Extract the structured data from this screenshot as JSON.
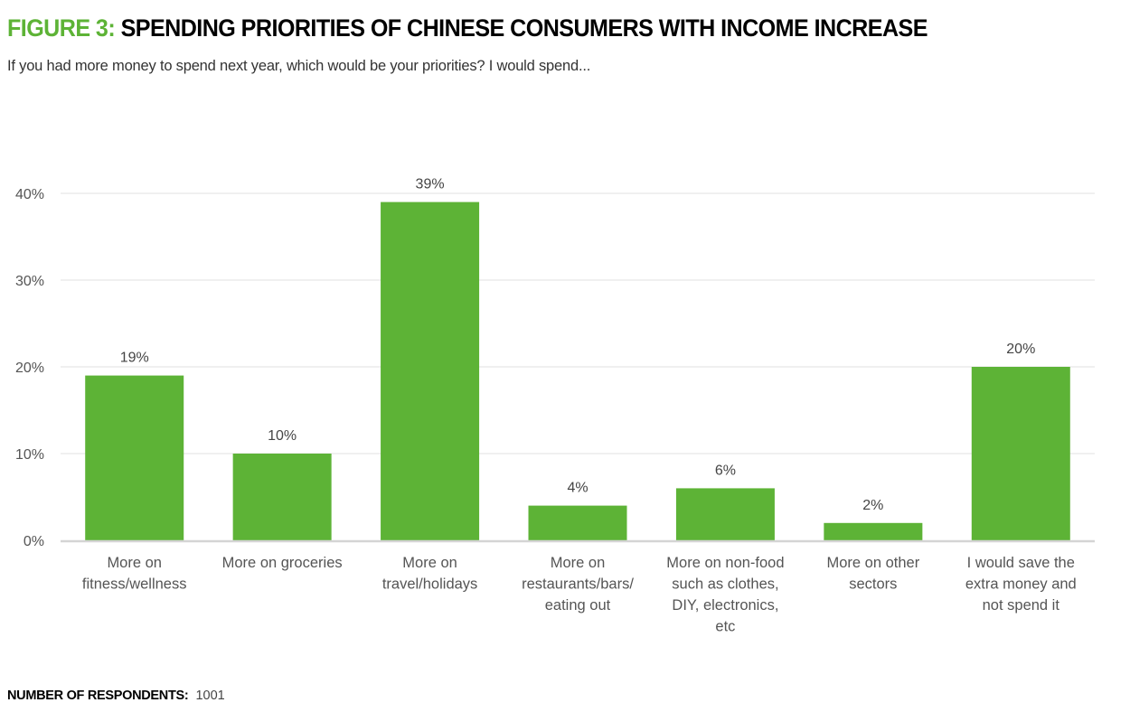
{
  "header": {
    "figure_label": "FIGURE 3:",
    "title": "SPENDING PRIORITIES OF CHINESE CONSUMERS WITH INCOME INCREASE",
    "subtitle": "If you had more money to spend next year, which would be your priorities? I would spend..."
  },
  "footer": {
    "label": "NUMBER OF RESPONDENTS:",
    "value": "1001"
  },
  "colors": {
    "accent": "#5db336",
    "bar": "#5db336",
    "gridline": "#e8e8e8",
    "axis": "#d4d4d4"
  },
  "chart_data": {
    "type": "bar",
    "title": "SPENDING PRIORITIES OF CHINESE CONSUMERS WITH INCOME INCREASE",
    "subtitle": "If you had more money to spend next year, which would be your priorities? I would spend...",
    "xlabel": "",
    "ylabel": "",
    "ylim": [
      0,
      40
    ],
    "yticks": [
      0,
      10,
      20,
      30,
      40
    ],
    "ytick_labels": [
      "0%",
      "10%",
      "20%",
      "30%",
      "40%"
    ],
    "grid": true,
    "legend": "none",
    "categories": [
      [
        "More on",
        "fitness/wellness"
      ],
      [
        "More on groceries"
      ],
      [
        "More on",
        "travel/holidays"
      ],
      [
        "More on",
        "restaurants/bars/",
        "eating out"
      ],
      [
        "More on non-food",
        "such as clothes,",
        "DIY, electronics,",
        "etc"
      ],
      [
        "More on other",
        "sectors"
      ],
      [
        "I would save the",
        "extra money and",
        "not spend it"
      ]
    ],
    "values": [
      19,
      10,
      39,
      4,
      6,
      2,
      20
    ],
    "data_labels": [
      "19%",
      "10%",
      "39%",
      "4%",
      "6%",
      "2%",
      "20%"
    ]
  }
}
